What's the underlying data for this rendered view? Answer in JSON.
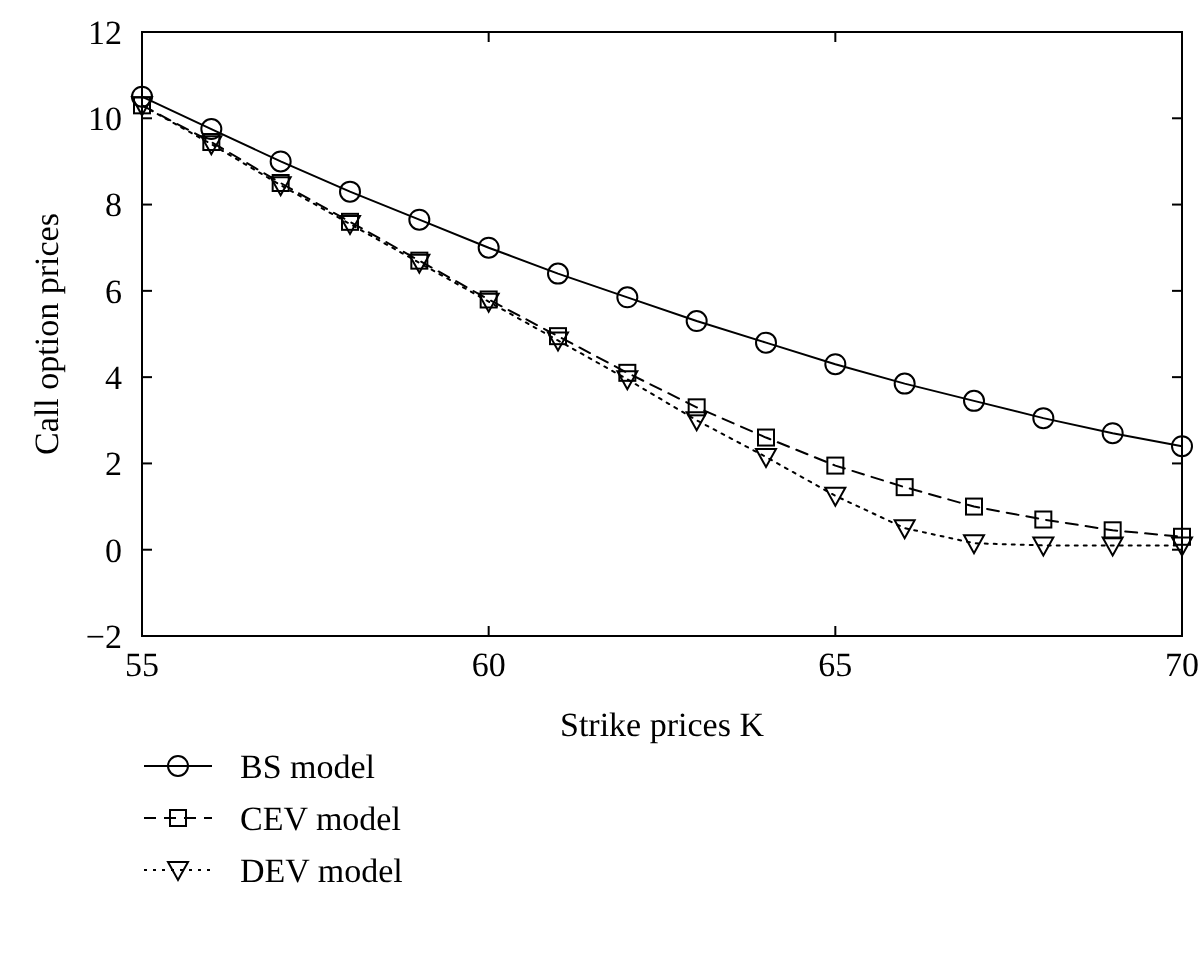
{
  "chart_data": {
    "type": "line",
    "xlabel": "Strike prices K",
    "ylabel": "Call option prices",
    "x": [
      55,
      56,
      57,
      58,
      59,
      60,
      61,
      62,
      63,
      64,
      65,
      66,
      67,
      68,
      69,
      70
    ],
    "xlim": [
      55,
      70
    ],
    "xticks": [
      55,
      60,
      65,
      70
    ],
    "ylim": [
      -2,
      12
    ],
    "yticks": [
      -2,
      0,
      2,
      4,
      6,
      8,
      10,
      12
    ],
    "grid": false,
    "legend": "bottom",
    "series": [
      {
        "name": "BS model",
        "color": "#000000",
        "marker": "circle",
        "line_style": "solid",
        "values": [
          10.5,
          9.75,
          9.0,
          8.3,
          7.65,
          7.0,
          6.4,
          5.85,
          5.3,
          4.8,
          4.3,
          3.85,
          3.45,
          3.05,
          2.7,
          2.4
        ]
      },
      {
        "name": "CEV model",
        "color": "#000000",
        "marker": "square",
        "line_style": "dashed",
        "values": [
          10.3,
          9.45,
          8.5,
          7.6,
          6.7,
          5.8,
          4.95,
          4.1,
          3.3,
          2.6,
          1.95,
          1.45,
          1.0,
          0.7,
          0.45,
          0.3
        ]
      },
      {
        "name": "DEV model",
        "color": "#000000",
        "marker": "triangle",
        "line_style": "dotted",
        "values": [
          10.3,
          9.4,
          8.45,
          7.55,
          6.65,
          5.75,
          4.85,
          3.95,
          3.0,
          2.15,
          1.25,
          0.5,
          0.15,
          0.1,
          0.1,
          0.1
        ]
      }
    ]
  }
}
